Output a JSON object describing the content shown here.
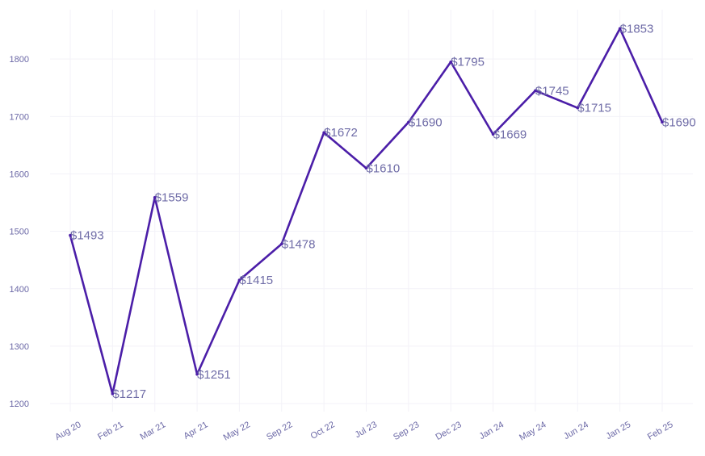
{
  "chart_data": {
    "type": "line",
    "categories": [
      "Aug 20",
      "Feb 21",
      "Mar 21",
      "Apr 21",
      "May 22",
      "Sep 22",
      "Oct 22",
      "Jul 23",
      "Sep 23",
      "Dec 23",
      "Jan 24",
      "May 24",
      "Jun 24",
      "Jan 25",
      "Feb 25"
    ],
    "values": [
      1493,
      1217,
      1559,
      1251,
      1415,
      1478,
      1672,
      1610,
      1690,
      1795,
      1669,
      1745,
      1715,
      1853,
      1690
    ],
    "data_labels": [
      "$1493",
      "$1217",
      "$1559",
      "$1251",
      "$1415",
      "$1478",
      "$1672",
      "$1610",
      "$1690",
      "$1795",
      "$1669",
      "$1745",
      "$1715",
      "$1853",
      "$1690"
    ],
    "y_ticks": [
      "1200",
      "1300",
      "1400",
      "1500",
      "1600",
      "1700",
      "1800"
    ],
    "y_tick_values": [
      1200,
      1300,
      1400,
      1500,
      1600,
      1700,
      1800
    ],
    "ylim": [
      1186,
      1886
    ],
    "title": "",
    "xlabel": "",
    "ylabel": "",
    "grid": true,
    "legend": false,
    "colors": {
      "line": "#4b1ea8",
      "grid": "#f3f2f8",
      "tick_text": "#6b68a6",
      "label_text": "#6f6ca7"
    }
  }
}
